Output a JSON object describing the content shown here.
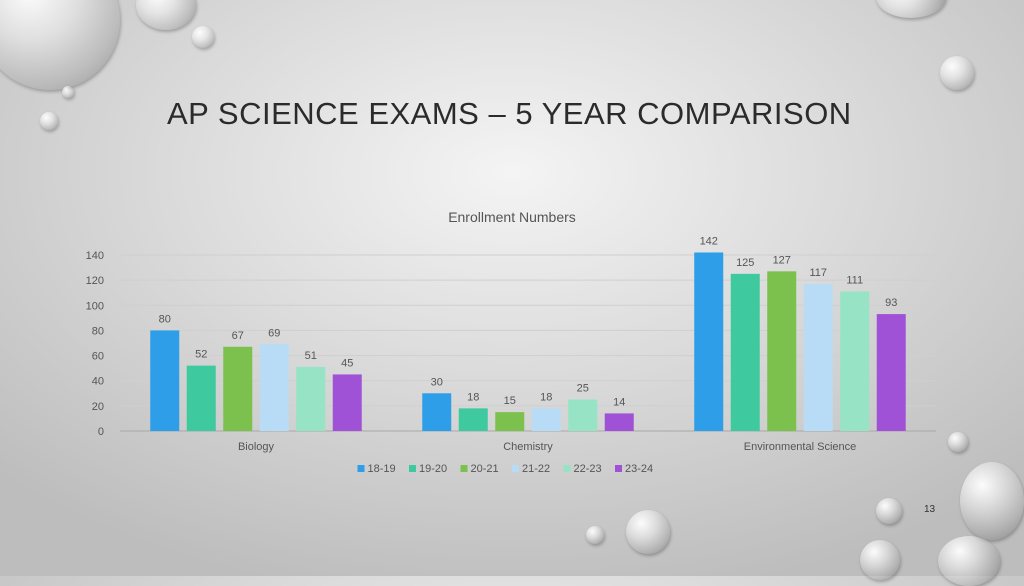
{
  "slide": {
    "title": "AP SCIENCE EXAMS – 5 YEAR COMPARISON",
    "page_number": "13"
  },
  "chart_data": {
    "type": "bar",
    "title": "Enrollment Numbers",
    "categories": [
      "Biology",
      "Chemistry",
      "Environmental Science"
    ],
    "series": [
      {
        "name": "18-19",
        "color": "#2e9ee8",
        "values": [
          80,
          30,
          142
        ]
      },
      {
        "name": "19-20",
        "color": "#3ec99e",
        "values": [
          52,
          18,
          125
        ]
      },
      {
        "name": "20-21",
        "color": "#7cc04e",
        "values": [
          67,
          15,
          127
        ]
      },
      {
        "name": "21-22",
        "color": "#b8dcf5",
        "values": [
          69,
          18,
          117
        ]
      },
      {
        "name": "22-23",
        "color": "#96e3c6",
        "values": [
          51,
          25,
          111
        ]
      },
      {
        "name": "23-24",
        "color": "#a052d6",
        "values": [
          45,
          14,
          93
        ]
      }
    ],
    "yticks": [
      0,
      20,
      40,
      60,
      80,
      100,
      120,
      140
    ],
    "ylim": [
      0,
      140
    ],
    "grid": true,
    "data_labels": true,
    "legend_position": "bottom"
  }
}
